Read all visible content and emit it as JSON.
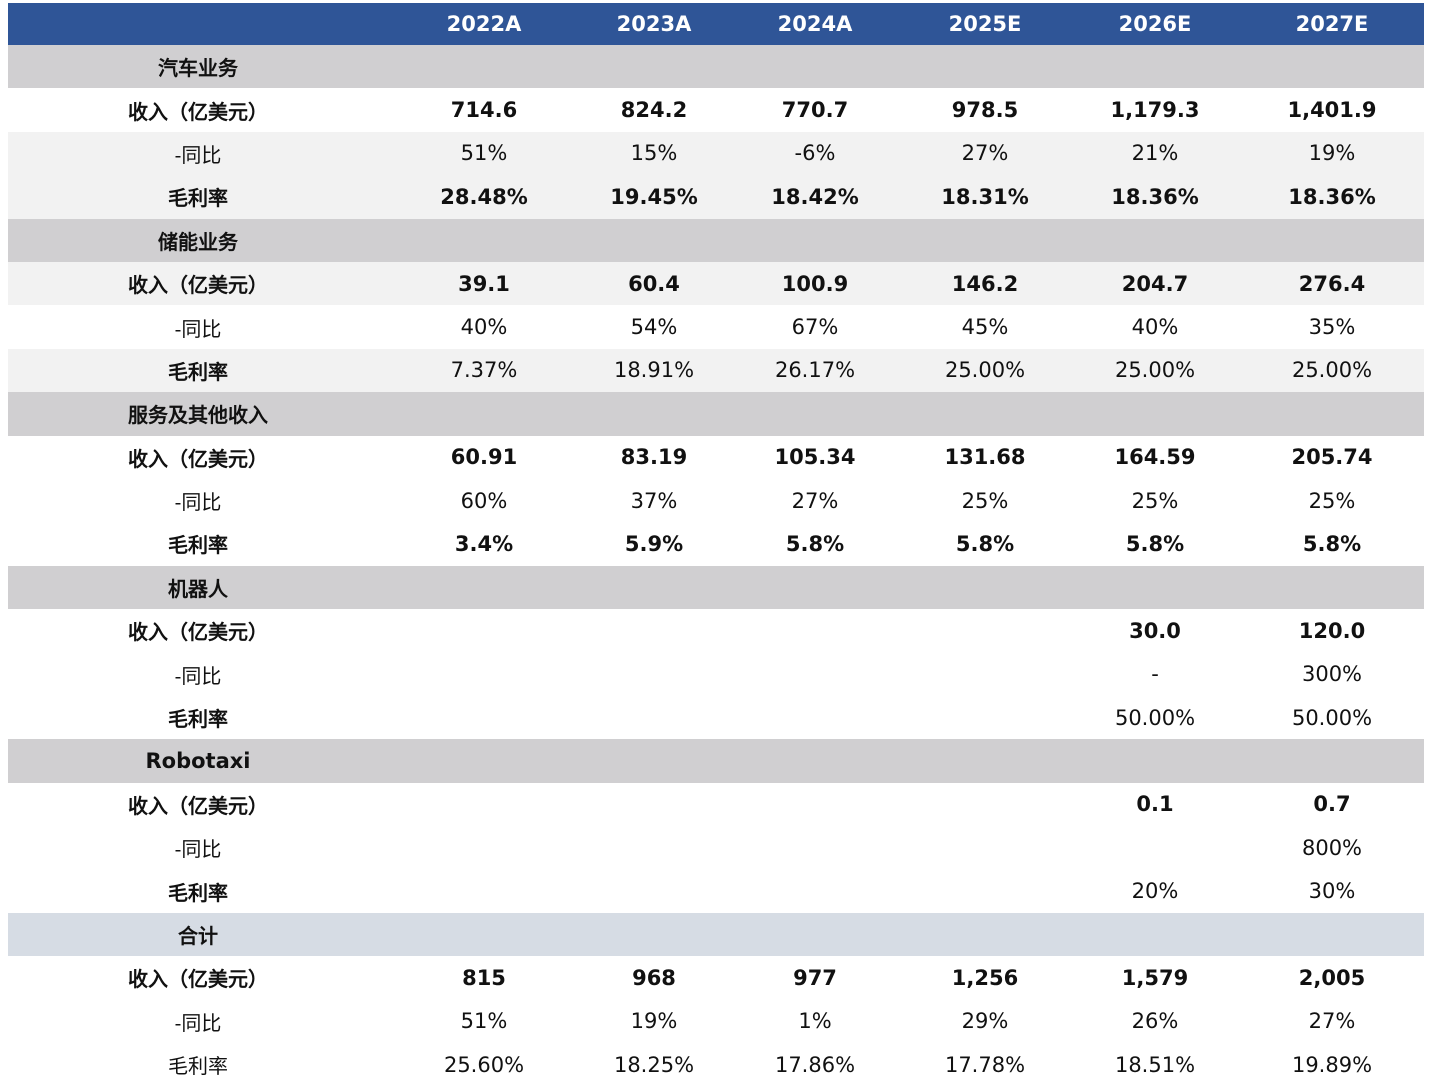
{
  "header": {
    "years": [
      "2022A",
      "2023A",
      "2024A",
      "2025E",
      "2026E",
      "2027E"
    ]
  },
  "rows": [
    {
      "type": "section",
      "label": "汽车业务",
      "values": [
        "",
        "",
        "",
        "",
        "",
        ""
      ]
    },
    {
      "type": "data",
      "label": "收入（亿美元）",
      "bold": true,
      "values": [
        "714.6",
        "824.2",
        "770.7",
        "978.5",
        "1,179.3",
        "1,401.9"
      ]
    },
    {
      "type": "data",
      "label": "-同比",
      "shaded": true,
      "values": [
        "51%",
        "15%",
        "-6%",
        "27%",
        "21%",
        "19%"
      ]
    },
    {
      "type": "data",
      "label": "毛利率",
      "bold": true,
      "shaded": true,
      "values": [
        "28.48%",
        "19.45%",
        "18.42%",
        "18.31%",
        "18.36%",
        "18.36%"
      ]
    },
    {
      "type": "section",
      "label": "储能业务",
      "values": [
        "",
        "",
        "",
        "",
        "",
        ""
      ]
    },
    {
      "type": "data",
      "label": "收入（亿美元）",
      "bold": true,
      "shaded": true,
      "values": [
        "39.1",
        "60.4",
        "100.9",
        "146.2",
        "204.7",
        "276.4"
      ]
    },
    {
      "type": "data",
      "label": "-同比",
      "values": [
        "40%",
        "54%",
        "67%",
        "45%",
        "40%",
        "35%"
      ]
    },
    {
      "type": "data",
      "label": "毛利率",
      "shaded": true,
      "boldLabel": true,
      "values": [
        "7.37%",
        "18.91%",
        "26.17%",
        "25.00%",
        "25.00%",
        "25.00%"
      ]
    },
    {
      "type": "section",
      "label": "服务及其他收入",
      "values": [
        "",
        "",
        "",
        "",
        "",
        ""
      ]
    },
    {
      "type": "data",
      "label": "收入（亿美元）",
      "bold": true,
      "values": [
        "60.91",
        "83.19",
        "105.34",
        "131.68",
        "164.59",
        "205.74"
      ]
    },
    {
      "type": "data",
      "label": "-同比",
      "values": [
        "60%",
        "37%",
        "27%",
        "25%",
        "25%",
        "25%"
      ]
    },
    {
      "type": "data",
      "label": "毛利率",
      "bold": true,
      "values": [
        "3.4%",
        "5.9%",
        "5.8%",
        "5.8%",
        "5.8%",
        "5.8%"
      ]
    },
    {
      "type": "section",
      "label": "机器人",
      "values": [
        "",
        "",
        "",
        "",
        "",
        ""
      ]
    },
    {
      "type": "data",
      "label": "收入（亿美元）",
      "bold": true,
      "values": [
        "",
        "",
        "",
        "",
        "30.0",
        "120.0"
      ]
    },
    {
      "type": "data",
      "label": "-同比",
      "values": [
        "",
        "",
        "",
        "",
        "-",
        "300%"
      ]
    },
    {
      "type": "data",
      "label": "毛利率",
      "boldLabel": true,
      "values": [
        "",
        "",
        "",
        "",
        "50.00%",
        "50.00%"
      ]
    },
    {
      "type": "section",
      "label": "Robotaxi",
      "latin": true,
      "values": [
        "",
        "",
        "",
        "",
        "",
        ""
      ]
    },
    {
      "type": "data",
      "label": "收入（亿美元）",
      "bold": true,
      "values": [
        "",
        "",
        "",
        "",
        "0.1",
        "0.7"
      ]
    },
    {
      "type": "data",
      "label": "-同比",
      "values": [
        "",
        "",
        "",
        "",
        "",
        "800%"
      ]
    },
    {
      "type": "data",
      "label": "毛利率",
      "boldLabel": true,
      "values": [
        "",
        "",
        "",
        "",
        "20%",
        "30%"
      ]
    },
    {
      "type": "section",
      "label": "合计",
      "total": true,
      "values": [
        "",
        "",
        "",
        "",
        "",
        ""
      ]
    },
    {
      "type": "data",
      "label": "收入（亿美元）",
      "bold": true,
      "values": [
        "815",
        "968",
        "977",
        "1,256",
        "1,579",
        "2,005"
      ]
    },
    {
      "type": "data",
      "label": "-同比",
      "values": [
        "51%",
        "19%",
        "1%",
        "29%",
        "26%",
        "27%"
      ]
    },
    {
      "type": "data",
      "label": "毛利率",
      "values": [
        "25.60%",
        "18.25%",
        "17.86%",
        "17.78%",
        "18.51%",
        "19.89%"
      ]
    }
  ]
}
